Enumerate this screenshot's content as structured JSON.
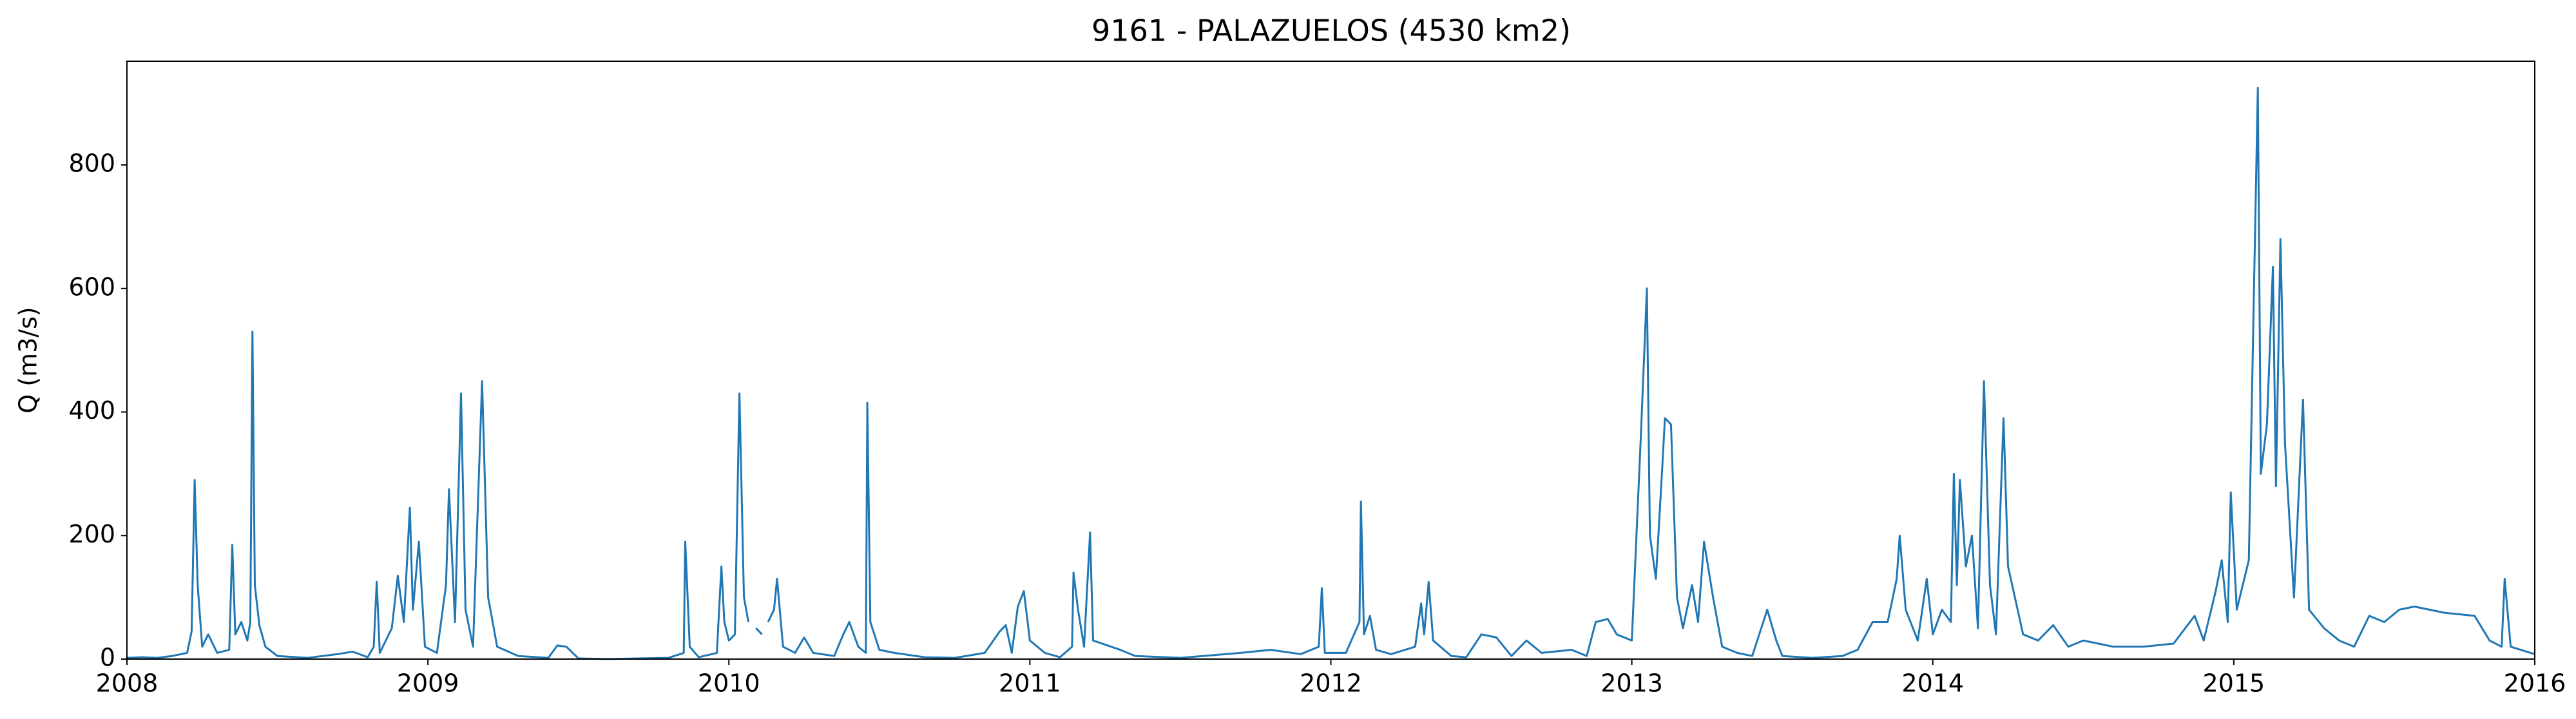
{
  "chart_data": {
    "type": "line",
    "title": "9161 - PALAZUELOS (4530 km2)",
    "y_label": "Q (m3/s)",
    "x": [
      2008.0,
      2008.05,
      2008.1,
      2008.15,
      2008.2,
      2008.215,
      2008.225,
      2008.235,
      2008.25,
      2008.27,
      2008.3,
      2008.34,
      2008.35,
      2008.36,
      2008.38,
      2008.4,
      2008.41,
      2008.417,
      2008.425,
      2008.44,
      2008.46,
      2008.5,
      2008.6,
      2008.7,
      2008.75,
      2008.8,
      2008.82,
      2008.83,
      2008.84,
      2008.88,
      2008.9,
      2008.92,
      2008.94,
      2008.95,
      2008.97,
      2008.99,
      2009.03,
      2009.06,
      2009.07,
      2009.09,
      2009.11,
      2009.125,
      2009.15,
      2009.18,
      2009.2,
      2009.23,
      2009.3,
      2009.4,
      2009.43,
      2009.46,
      2009.5,
      2009.6,
      2009.7,
      2009.8,
      2009.85,
      2009.855,
      2009.87,
      2009.9,
      2009.96,
      2009.975,
      2009.985,
      2010.0,
      2010.02,
      2010.035,
      2010.05,
      2010.065,
      2010.075,
      2010.09,
      2010.11,
      2010.12,
      2010.13,
      2010.15,
      2010.16,
      2010.18,
      2010.22,
      2010.25,
      2010.28,
      2010.35,
      2010.38,
      2010.4,
      2010.43,
      2010.455,
      2010.46,
      2010.47,
      2010.5,
      2010.55,
      2010.65,
      2010.75,
      2010.85,
      2010.9,
      2010.92,
      2010.94,
      2010.96,
      2010.98,
      2011.0,
      2011.05,
      2011.1,
      2011.14,
      2011.145,
      2011.16,
      2011.18,
      2011.2,
      2011.21,
      2011.3,
      2011.35,
      2011.5,
      2011.7,
      2011.8,
      2011.9,
      2011.96,
      2011.97,
      2011.98,
      2012.05,
      2012.095,
      2012.1,
      2012.11,
      2012.13,
      2012.15,
      2012.2,
      2012.28,
      2012.3,
      2012.31,
      2012.325,
      2012.34,
      2012.4,
      2012.45,
      2012.5,
      2012.55,
      2012.6,
      2012.65,
      2012.7,
      2012.8,
      2012.85,
      2012.88,
      2012.92,
      2012.95,
      2013.0,
      2013.03,
      2013.05,
      2013.06,
      2013.08,
      2013.1,
      2013.11,
      2013.13,
      2013.15,
      2013.17,
      2013.2,
      2013.22,
      2013.24,
      2013.27,
      2013.3,
      2013.35,
      2013.4,
      2013.45,
      2013.48,
      2013.5,
      2013.6,
      2013.7,
      2013.75,
      2013.8,
      2013.85,
      2013.88,
      2013.89,
      2013.91,
      2013.95,
      2013.98,
      2014.0,
      2014.03,
      2014.06,
      2014.07,
      2014.08,
      2014.09,
      2014.11,
      2014.13,
      2014.15,
      2014.17,
      2014.19,
      2014.21,
      2014.235,
      2014.25,
      2014.3,
      2014.35,
      2014.4,
      2014.45,
      2014.5,
      2014.55,
      2014.6,
      2014.7,
      2014.8,
      2014.87,
      2014.9,
      2014.94,
      2014.96,
      2014.98,
      2014.99,
      2015.01,
      2015.05,
      2015.08,
      2015.09,
      2015.11,
      2015.13,
      2015.14,
      2015.155,
      2015.17,
      2015.2,
      2015.23,
      2015.25,
      2015.3,
      2015.35,
      2015.4,
      2015.45,
      2015.5,
      2015.55,
      2015.6,
      2015.7,
      2015.8,
      2015.85,
      2015.89,
      2015.9,
      2015.92,
      2016.0
    ],
    "series": [
      {
        "name": "Q",
        "color": "#1f77b4",
        "values": [
          2,
          3,
          2,
          5,
          10,
          45,
          290,
          120,
          20,
          40,
          10,
          15,
          185,
          40,
          60,
          30,
          60,
          530,
          120,
          55,
          20,
          5,
          2,
          8,
          12,
          3,
          20,
          125,
          10,
          50,
          135,
          60,
          245,
          80,
          190,
          20,
          10,
          120,
          275,
          60,
          430,
          80,
          20,
          450,
          100,
          20,
          5,
          2,
          22,
          20,
          1,
          0,
          1,
          2,
          10,
          190,
          20,
          3,
          10,
          150,
          60,
          30,
          40,
          430,
          100,
          60,
          null,
          50,
          40,
          null,
          60,
          80,
          130,
          20,
          10,
          35,
          10,
          5,
          40,
          60,
          20,
          10,
          415,
          60,
          15,
          10,
          3,
          2,
          10,
          45,
          55,
          10,
          85,
          110,
          30,
          10,
          3,
          20,
          140,
          80,
          20,
          205,
          30,
          15,
          5,
          2,
          10,
          15,
          8,
          20,
          115,
          10,
          10,
          60,
          255,
          40,
          70,
          15,
          8,
          20,
          90,
          40,
          125,
          30,
          5,
          3,
          40,
          35,
          5,
          30,
          10,
          15,
          5,
          60,
          65,
          40,
          30,
          360,
          600,
          200,
          130,
          300,
          390,
          380,
          100,
          50,
          120,
          60,
          190,
          100,
          20,
          10,
          5,
          80,
          30,
          5,
          2,
          5,
          15,
          60,
          60,
          130,
          200,
          80,
          30,
          130,
          40,
          80,
          60,
          300,
          120,
          290,
          150,
          200,
          50,
          450,
          120,
          40,
          390,
          150,
          40,
          30,
          55,
          20,
          30,
          25,
          20,
          20,
          25,
          70,
          30,
          110,
          160,
          60,
          270,
          80,
          160,
          925,
          300,
          380,
          635,
          280,
          680,
          350,
          100,
          420,
          80,
          50,
          30,
          20,
          70,
          60,
          80,
          85,
          75,
          70,
          30,
          20,
          130,
          20,
          8
        ]
      }
    ],
    "xlim": [
      2008,
      2016
    ],
    "xticks": [
      2008,
      2009,
      2010,
      2011,
      2012,
      2013,
      2014,
      2015,
      2016
    ],
    "ylim": [
      0,
      968
    ],
    "yticks": [
      0,
      200,
      400,
      600,
      800
    ],
    "grid": false
  }
}
